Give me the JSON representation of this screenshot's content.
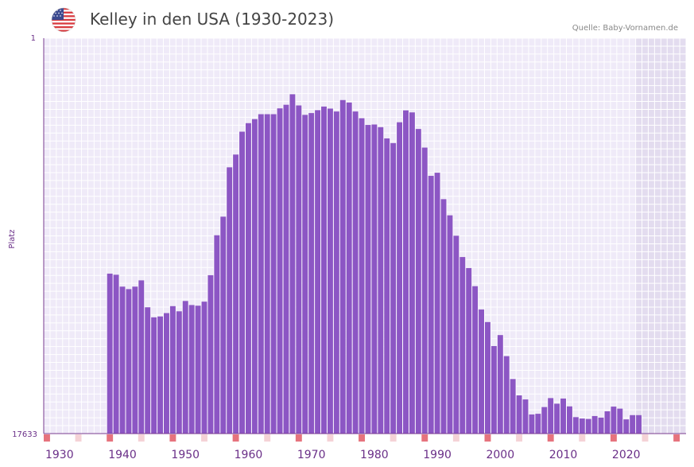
{
  "title": "Kelley in den USA (1930-2023)",
  "source": "Quelle: Baby-Vornamen.de",
  "flag_icon": "usa-flag-icon",
  "colors": {
    "bar": "#8c56c4",
    "background": "#efeaf8",
    "grid": "#ffffff",
    "future_shade": "#e3dcef",
    "axis": "#7a3b8f",
    "tick_label": "#6a2f88",
    "marker_major": "#e6737d",
    "marker_minor": "#f5d2d6"
  },
  "chart_data": {
    "type": "bar",
    "title": "Kelley in den USA (1930-2023)",
    "xlabel": "",
    "ylabel": "Platz",
    "y_inverted": true,
    "ylim": [
      1,
      17633
    ],
    "y_tick_labels": [
      "1",
      "17633"
    ],
    "xlim": [
      1928,
      2029
    ],
    "x_tick_labels": [
      "1930",
      "1940",
      "1950",
      "1960",
      "1970",
      "1980",
      "1990",
      "2000",
      "2010",
      "2020"
    ],
    "future_shade_from": 2022,
    "x": [
      1938,
      1939,
      1940,
      1941,
      1942,
      1943,
      1944,
      1945,
      1946,
      1947,
      1948,
      1949,
      1950,
      1951,
      1952,
      1953,
      1954,
      1955,
      1956,
      1957,
      1958,
      1959,
      1960,
      1961,
      1962,
      1963,
      1964,
      1965,
      1966,
      1967,
      1968,
      1969,
      1970,
      1971,
      1972,
      1973,
      1974,
      1975,
      1976,
      1977,
      1978,
      1979,
      1980,
      1981,
      1982,
      1983,
      1984,
      1985,
      1986,
      1987,
      1988,
      1989,
      1990,
      1991,
      1992,
      1993,
      1994,
      1995,
      1996,
      1997,
      1998,
      1999,
      2000,
      2001,
      2002,
      2003,
      2004,
      2005,
      2006,
      2007,
      2008,
      2009,
      2010,
      2011,
      2012,
      2013,
      2014,
      2015,
      2016,
      2017,
      2018,
      2019,
      2020,
      2021,
      2022
    ],
    "values": [
      10500,
      10550,
      11080,
      11190,
      11080,
      10800,
      12000,
      12450,
      12410,
      12260,
      11950,
      12180,
      11720,
      11900,
      11930,
      11750,
      10570,
      8790,
      7960,
      5760,
      5190,
      4170,
      3790,
      3610,
      3390,
      3390,
      3390,
      3130,
      2970,
      2500,
      3000,
      3420,
      3340,
      3210,
      3050,
      3140,
      3270,
      2760,
      2870,
      3270,
      3570,
      3870,
      3850,
      3970,
      4470,
      4680,
      3750,
      3220,
      3310,
      4050,
      4880,
      6140,
      6000,
      7180,
      7900,
      8810,
      9760,
      10250,
      11060,
      12100,
      12660,
      13730,
      13240,
      14180,
      15200,
      15930,
      16110,
      16780,
      16750,
      16450,
      16050,
      16300,
      16070,
      16420,
      16900,
      16960,
      16980,
      16850,
      16920,
      16640,
      16430,
      16520,
      17000,
      16810,
      16810
    ]
  }
}
